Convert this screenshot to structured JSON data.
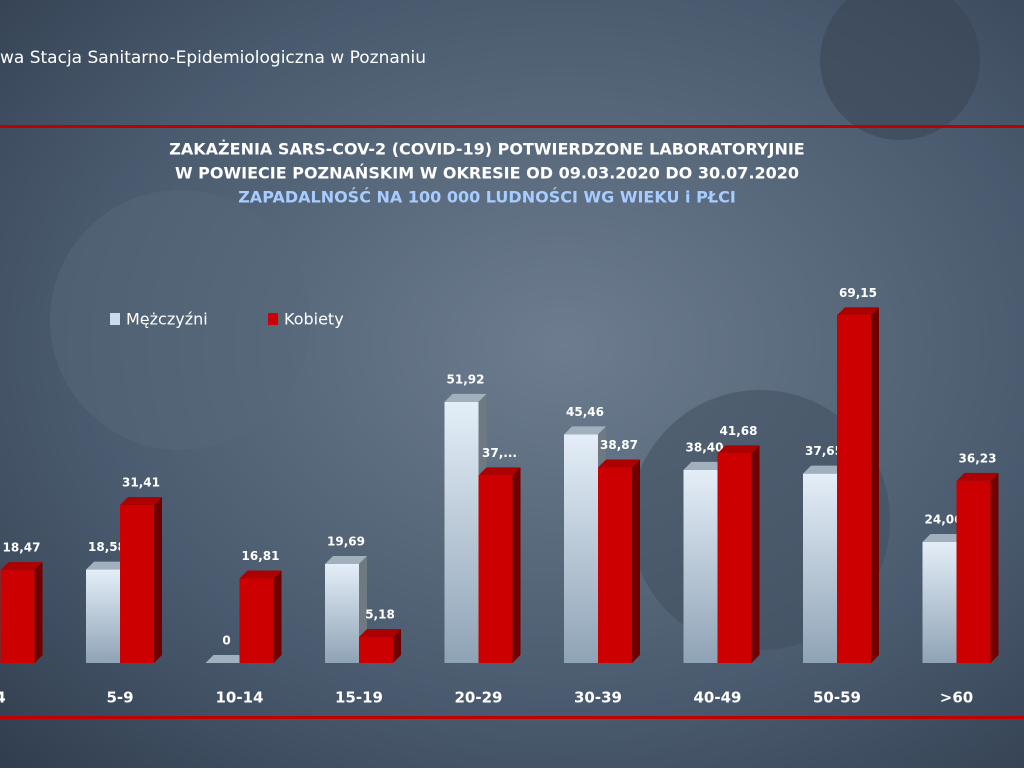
{
  "header": {
    "institution": "wa Stacja Sanitarno-Epidemiologiczna w Poznaniu"
  },
  "chart_data": {
    "type": "bar3d",
    "title": "ZAKAŻENIA SARS-COV-2 (COVID-19) POTWIERDZONE LABORATORYJNIE",
    "subtitle": "W POWIECIE POZNAŃSKIM W OKRESIE OD 09.03.2020 DO 30.07.2020",
    "subtitle2": "ZAPADALNOŚĆ NA 100 000 LUDNOŚCI WG WIEKU i PŁCI",
    "categories": [
      "4",
      "5-9",
      "10-14",
      "15-19",
      "20-29",
      "30-39",
      "40-49",
      "50-59",
      ">60"
    ],
    "series": [
      {
        "name": "Mężczyźni",
        "color": "#c9dcec",
        "values": [
          null,
          18.58,
          0,
          19.69,
          51.92,
          45.46,
          38.4,
          37.65,
          24.06
        ],
        "value_labels": [
          null,
          "18,58",
          "0",
          "19,69",
          "51,92",
          "45,46",
          "38,40",
          "37,65",
          "24,06"
        ]
      },
      {
        "name": "Kobiety",
        "color": "#cc0000",
        "values": [
          18.47,
          31.41,
          16.81,
          5.18,
          37.3,
          38.87,
          41.68,
          69.15,
          36.23
        ],
        "value_labels": [
          "18,47",
          "31,41",
          "16,81",
          "5,18",
          "37,...",
          "38,87",
          "41,68",
          "69,15",
          "36,23"
        ]
      }
    ],
    "ylim": [
      0,
      70
    ]
  }
}
